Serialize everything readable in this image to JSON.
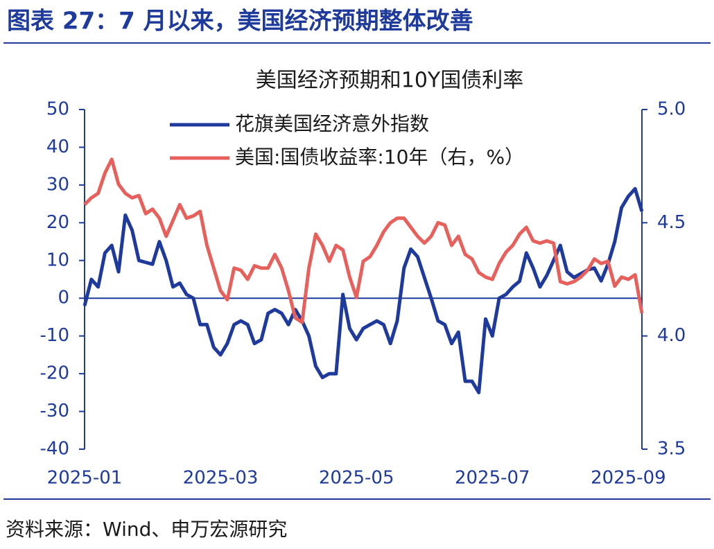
{
  "header": {
    "title": "图表 27：7 月以来，美国经济预期整体改善"
  },
  "chart_data": {
    "type": "line",
    "title": "美国经济预期和10Y国债利率",
    "x": [
      0,
      0.1,
      0.2,
      0.3,
      0.4,
      0.5,
      0.6,
      0.7,
      0.8,
      0.9,
      1,
      1.1,
      1.2,
      1.3,
      1.4,
      1.5,
      1.6,
      1.7,
      1.8,
      1.9,
      2,
      2.1,
      2.2,
      2.3,
      2.4,
      2.5,
      2.6,
      2.7,
      2.8,
      2.9,
      3,
      3.1,
      3.2,
      3.3,
      3.4,
      3.5,
      3.6,
      3.7,
      3.8,
      3.9,
      4,
      4.1,
      4.2,
      4.3,
      4.4,
      4.5,
      4.6,
      4.7,
      4.8,
      4.9,
      5,
      5.1,
      5.2,
      5.3,
      5.4,
      5.5,
      5.6,
      5.7,
      5.8,
      5.9,
      6,
      6.1,
      6.2,
      6.3,
      6.4,
      6.5,
      6.6,
      6.7,
      6.8,
      6.9,
      7,
      7.1,
      7.2,
      7.3,
      7.4,
      7.5,
      7.6,
      7.7,
      7.8,
      7.9,
      8,
      8.1,
      8.2
    ],
    "xlim": [
      0,
      8.2
    ],
    "xticks": [
      {
        "value": 0,
        "label": "2025-01"
      },
      {
        "value": 2,
        "label": "2025-03"
      },
      {
        "value": 4,
        "label": "2025-05"
      },
      {
        "value": 6,
        "label": "2025-07"
      },
      {
        "value": 8,
        "label": "2025-09"
      }
    ],
    "ylim": [
      -40,
      50
    ],
    "yticks": [
      50,
      40,
      30,
      20,
      10,
      0,
      -10,
      -20,
      -30,
      -40
    ],
    "y2lim": [
      3.5,
      5
    ],
    "y2ticks": [
      {
        "value": 5,
        "label": "5.0"
      },
      4.5,
      {
        "value": 4,
        "label": "4.0"
      },
      3.5
    ],
    "legend": "upper center",
    "series": [
      {
        "name": "花旗美国经济意外指数",
        "color": "#1d3a9c",
        "values": [
          -2,
          5,
          3,
          12,
          14,
          7,
          22,
          18,
          10,
          9.5,
          9,
          15,
          10,
          3,
          4,
          1,
          0,
          -7,
          -7,
          -13,
          -15,
          -12,
          -7,
          -6,
          -7,
          -12,
          -11,
          -4,
          -3,
          -4,
          -7,
          -3,
          -6,
          -10,
          -18,
          -21,
          -20,
          -20,
          1,
          -8,
          -11,
          -8,
          -7,
          -6,
          -7,
          -12,
          -6,
          8,
          13,
          11,
          5.5,
          0,
          -6,
          -7,
          -12,
          -9,
          -22,
          -22,
          -25,
          -5.5,
          -10,
          0,
          1,
          3,
          4.5,
          12,
          8,
          3,
          6,
          10,
          14,
          7,
          5.5,
          6.5,
          7.5,
          8,
          4.6,
          9,
          15,
          24,
          27,
          29,
          23
        ]
      },
      {
        "name": "美国:国债收益率:10年（右，%）",
        "color": "#e8605c",
        "axis": "y2",
        "values": [
          4.58,
          4.61,
          4.63,
          4.72,
          4.78,
          4.67,
          4.63,
          4.61,
          4.62,
          4.54,
          4.56,
          4.52,
          4.44,
          4.51,
          4.58,
          4.52,
          4.53,
          4.55,
          4.4,
          4.3,
          4.2,
          4.16,
          4.3,
          4.29,
          4.25,
          4.31,
          4.3,
          4.3,
          4.36,
          4.3,
          4.2,
          4.08,
          4.06,
          4.3,
          4.45,
          4.4,
          4.33,
          4.4,
          4.38,
          4.26,
          4.17,
          4.33,
          4.35,
          4.4,
          4.46,
          4.5,
          4.52,
          4.52,
          4.48,
          4.44,
          4.41,
          4.44,
          4.5,
          4.49,
          4.4,
          4.44,
          4.36,
          4.34,
          4.28,
          4.26,
          4.25,
          4.32,
          4.37,
          4.4,
          4.45,
          4.48,
          4.42,
          4.41,
          4.42,
          4.41,
          4.24,
          4.23,
          4.24,
          4.26,
          4.29,
          4.34,
          4.32,
          4.33,
          4.22,
          4.26,
          4.25,
          4.27,
          4.1
        ]
      }
    ]
  },
  "source": "资料来源：Wind、申万宏源研究"
}
